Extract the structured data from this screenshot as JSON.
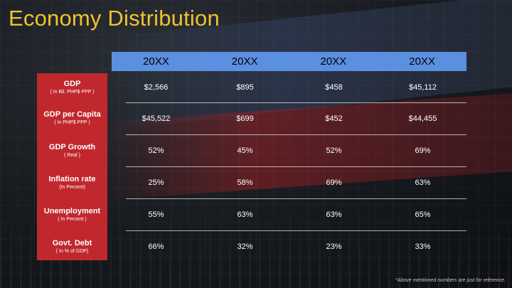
{
  "title": "Economy Distribution",
  "columns": [
    "20XX",
    "20XX",
    "20XX",
    "20XX"
  ],
  "rows": [
    {
      "label": "GDP",
      "sub": "( In Bil. PHP$ PPP )",
      "values": [
        "$2,566",
        "$895",
        "$458",
        "$45,112"
      ]
    },
    {
      "label": "GDP per Capita",
      "sub": "( In PHP$ PPP )",
      "values": [
        "$45,522",
        "$699",
        "$452",
        "$44,455"
      ]
    },
    {
      "label": "GDP Growth",
      "sub": "( Real )",
      "values": [
        "52%",
        "45%",
        "52%",
        "69%"
      ]
    },
    {
      "label": "Inflation rate",
      "sub": "(In Percent)",
      "values": [
        "25%",
        "58%",
        "69%",
        "63%"
      ]
    },
    {
      "label": "Unemployment",
      "sub": "( In Percent )",
      "values": [
        "55%",
        "63%",
        "63%",
        "65%"
      ]
    },
    {
      "label": "Govt. Debt",
      "sub": "( In % of GDP)",
      "values": [
        "66%",
        "32%",
        "23%",
        "33%"
      ]
    }
  ],
  "note": "*Above mentioned numbers are just for reference.",
  "colors": {
    "title": "#f2c12e",
    "header": "#5b8fe0",
    "label_panel": "#c0282d"
  }
}
